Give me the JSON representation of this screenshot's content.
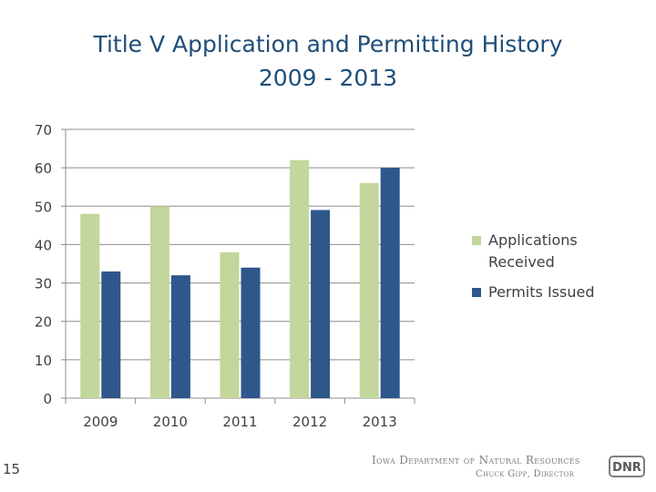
{
  "title_lines": [
    "Title V Application and Permitting History",
    "2009 - 2013"
  ],
  "slide_number": "15",
  "footer": {
    "organization": "Iowa Department of Natural Resources",
    "director": "Chuck Gipp, Director",
    "logo_text": "DNR"
  },
  "chart_data": {
    "type": "bar",
    "title": "Title V Application and Permitting History 2009 - 2013",
    "categories": [
      "2009",
      "2010",
      "2011",
      "2012",
      "2013"
    ],
    "series": [
      {
        "name": "Applications Received",
        "values": [
          48,
          50,
          38,
          62,
          56
        ],
        "color": "#c3d69b"
      },
      {
        "name": "Permits Issued",
        "values": [
          33,
          32,
          34,
          49,
          60
        ],
        "color": "#2e578c"
      }
    ],
    "ylim": [
      0,
      70
    ],
    "yticks": [
      0,
      10,
      20,
      30,
      40,
      50,
      60,
      70
    ],
    "grid": true,
    "legend": "right",
    "xlabel": "",
    "ylabel": ""
  },
  "legend_labels": [
    "Applications Received",
    "Permits Issued"
  ]
}
